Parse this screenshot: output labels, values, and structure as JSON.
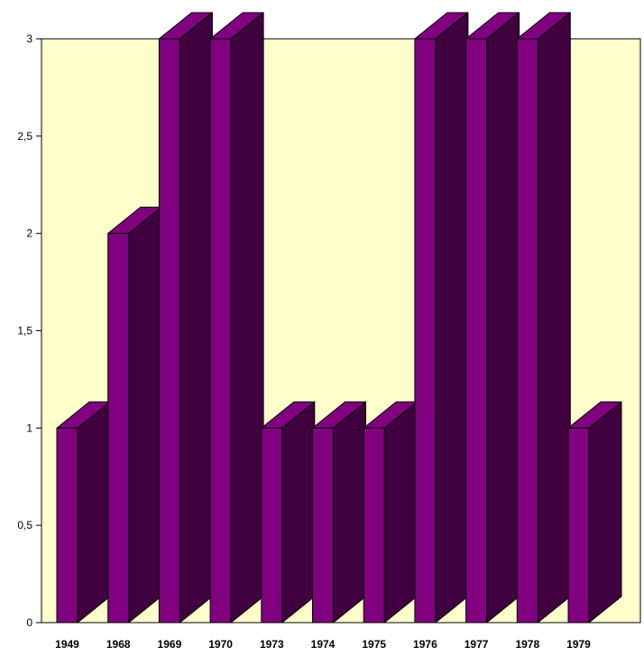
{
  "chart_data": {
    "type": "bar",
    "categories": [
      "1949",
      "1968",
      "1969",
      "1970",
      "1973",
      "1974",
      "1975",
      "1976",
      "1977",
      "1978",
      "1979"
    ],
    "values": [
      1,
      2,
      3,
      3,
      1,
      1,
      1,
      3,
      3,
      3,
      1
    ],
    "ylim": [
      0,
      3
    ],
    "yticks": [
      0,
      0.5,
      1,
      1.5,
      2,
      2.5,
      3
    ],
    "ytick_labels": [
      "0",
      "0,5",
      "1",
      "1,5",
      "2",
      "2,5",
      "3"
    ],
    "grid": false,
    "style": "3d",
    "colors": {
      "plot_background": "#ffffcc",
      "bar_front": "#800080",
      "bar_side": "#400040",
      "bar_top": "#800080",
      "outline": "#000000"
    }
  }
}
